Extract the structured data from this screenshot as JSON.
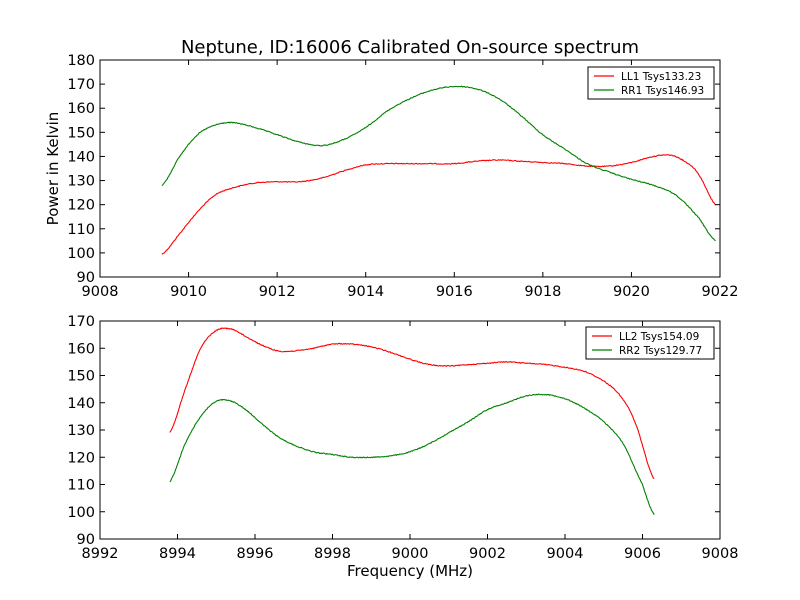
{
  "figure": {
    "title": "Neptune, ID:16006 Calibrated On-source spectrum"
  },
  "chart_data": [
    {
      "type": "line",
      "title": "Neptune, ID:16006 Calibrated On-source spectrum",
      "xlabel": "",
      "ylabel": "Power in Kelvin",
      "xlim": [
        9008,
        9022
      ],
      "ylim": [
        90,
        180
      ],
      "xticks": [
        "9008",
        "9010",
        "9012",
        "9014",
        "9016",
        "9018",
        "9020",
        "9022"
      ],
      "yticks": [
        "90",
        "100",
        "110",
        "120",
        "130",
        "140",
        "150",
        "160",
        "170",
        "180"
      ],
      "legend_position": "top-right",
      "grid": false,
      "series": [
        {
          "name": "LL1 Tsys133.23",
          "color": "#ff0000",
          "points": [
            [
              9009.4,
              99.5
            ],
            [
              9009.8,
              108
            ],
            [
              9010.2,
              117
            ],
            [
              9010.6,
              124
            ],
            [
              9011.0,
              127
            ],
            [
              9011.5,
              129
            ],
            [
              9012.0,
              129.5
            ],
            [
              9012.5,
              129.5
            ],
            [
              9013.0,
              131
            ],
            [
              9013.5,
              134
            ],
            [
              9014.0,
              136.5
            ],
            [
              9014.5,
              137
            ],
            [
              9015.0,
              137
            ],
            [
              9015.5,
              137
            ],
            [
              9016.0,
              137
            ],
            [
              9016.5,
              138
            ],
            [
              9017.0,
              138.5
            ],
            [
              9017.5,
              138
            ],
            [
              9018.0,
              137.5
            ],
            [
              9018.5,
              137
            ],
            [
              9019.0,
              136
            ],
            [
              9019.5,
              136
            ],
            [
              9020.0,
              137.5
            ],
            [
              9020.5,
              140
            ],
            [
              9020.9,
              140.5
            ],
            [
              9021.2,
              138
            ],
            [
              9021.5,
              133
            ],
            [
              9021.9,
              120
            ]
          ]
        },
        {
          "name": "RR1 Tsys146.93",
          "color": "#008000",
          "points": [
            [
              9009.4,
              128
            ],
            [
              9009.8,
              140
            ],
            [
              9010.2,
              149
            ],
            [
              9010.6,
              153
            ],
            [
              9011.0,
              154
            ],
            [
              9011.5,
              152
            ],
            [
              9012.0,
              149
            ],
            [
              9012.5,
              146
            ],
            [
              9013.0,
              144.5
            ],
            [
              9013.5,
              147
            ],
            [
              9014.0,
              152
            ],
            [
              9014.5,
              159
            ],
            [
              9015.0,
              164
            ],
            [
              9015.5,
              167.5
            ],
            [
              9016.0,
              169
            ],
            [
              9016.5,
              168
            ],
            [
              9017.0,
              164
            ],
            [
              9017.5,
              157
            ],
            [
              9018.0,
              149
            ],
            [
              9018.5,
              143
            ],
            [
              9019.0,
              137
            ],
            [
              9019.5,
              133.5
            ],
            [
              9020.0,
              130.5
            ],
            [
              9020.5,
              128
            ],
            [
              9021.0,
              124
            ],
            [
              9021.5,
              115
            ],
            [
              9021.9,
              105
            ]
          ]
        }
      ]
    },
    {
      "type": "line",
      "title": "",
      "xlabel": "Frequency (MHz)",
      "ylabel": "",
      "xlim": [
        8992,
        9008
      ],
      "ylim": [
        90,
        170
      ],
      "xticks": [
        "8992",
        "8994",
        "8996",
        "8998",
        "9000",
        "9002",
        "9004",
        "9006",
        "9008"
      ],
      "yticks": [
        "90",
        "100",
        "110",
        "120",
        "130",
        "140",
        "150",
        "160",
        "170"
      ],
      "legend_position": "top-right",
      "grid": false,
      "series": [
        {
          "name": "LL2 Tsys154.09",
          "color": "#ff0000",
          "points": [
            [
              8993.8,
              129
            ],
            [
              8994.2,
              145
            ],
            [
              8994.6,
              160
            ],
            [
              8995.0,
              166.5
            ],
            [
              8995.4,
              167
            ],
            [
              8995.8,
              164
            ],
            [
              8996.2,
              161
            ],
            [
              8996.6,
              159
            ],
            [
              8997.0,
              159
            ],
            [
              8997.5,
              160
            ],
            [
              8998.0,
              161.5
            ],
            [
              8998.5,
              161.5
            ],
            [
              8999.0,
              160.5
            ],
            [
              8999.5,
              158.5
            ],
            [
              9000.0,
              156
            ],
            [
              9000.5,
              154
            ],
            [
              9001.0,
              153.5
            ],
            [
              9001.5,
              154
            ],
            [
              9002.0,
              154.5
            ],
            [
              9002.5,
              155
            ],
            [
              9003.0,
              154.5
            ],
            [
              9003.5,
              154
            ],
            [
              9004.0,
              153
            ],
            [
              9004.5,
              151.5
            ],
            [
              9005.0,
              148
            ],
            [
              9005.4,
              143
            ],
            [
              9005.8,
              133
            ],
            [
              9006.3,
              112
            ]
          ]
        },
        {
          "name": "RR2 Tsys129.77",
          "color": "#008000",
          "points": [
            [
              8993.8,
              111
            ],
            [
              8994.2,
              125
            ],
            [
              8994.6,
              135
            ],
            [
              8995.0,
              140.5
            ],
            [
              8995.4,
              140.5
            ],
            [
              8995.8,
              137
            ],
            [
              8996.2,
              132
            ],
            [
              8996.6,
              127.5
            ],
            [
              8997.0,
              124.5
            ],
            [
              8997.5,
              122
            ],
            [
              8998.0,
              121
            ],
            [
              8998.5,
              120
            ],
            [
              8999.0,
              120
            ],
            [
              8999.5,
              120.5
            ],
            [
              9000.0,
              122
            ],
            [
              9000.5,
              125
            ],
            [
              9001.0,
              129
            ],
            [
              9001.5,
              133
            ],
            [
              9002.0,
              137.5
            ],
            [
              9002.5,
              140
            ],
            [
              9003.0,
              142.5
            ],
            [
              9003.5,
              143
            ],
            [
              9004.0,
              141.5
            ],
            [
              9004.5,
              138
            ],
            [
              9005.0,
              133
            ],
            [
              9005.5,
              125
            ],
            [
              9006.0,
              110
            ],
            [
              9006.3,
              99
            ]
          ]
        }
      ]
    }
  ]
}
